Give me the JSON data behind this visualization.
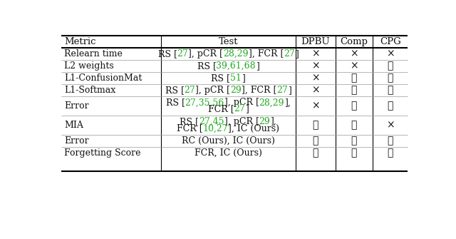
{
  "header": [
    "Metric",
    "Test",
    "DPBU",
    "Comp",
    "CPG"
  ],
  "rows": [
    {
      "metric": "Relearn time",
      "test_line1": [
        [
          "RS [",
          "k"
        ],
        [
          "27",
          "g"
        ],
        [
          "], pCR [",
          "k"
        ],
        [
          "28,29",
          "g"
        ],
        [
          "], FCR [",
          "k"
        ],
        [
          "27",
          "g"
        ],
        [
          "]",
          "k"
        ]
      ],
      "test_line2": [],
      "dpbu": "x",
      "comp": "x",
      "cpg": "x"
    },
    {
      "metric": "L2 weights",
      "test_line1": [
        [
          "RS [",
          "k"
        ],
        [
          "39,61,68",
          "g"
        ],
        [
          "]",
          "k"
        ]
      ],
      "test_line2": [],
      "dpbu": "x",
      "comp": "x",
      "cpg": "c"
    },
    {
      "metric": "L1-ConfusionMat",
      "test_line1": [
        [
          "RS [",
          "k"
        ],
        [
          "51",
          "g"
        ],
        [
          "]",
          "k"
        ]
      ],
      "test_line2": [],
      "dpbu": "x",
      "comp": "c",
      "cpg": "c"
    },
    {
      "metric": "L1-Softmax",
      "test_line1": [
        [
          "RS [",
          "k"
        ],
        [
          "27",
          "g"
        ],
        [
          "], pCR [",
          "k"
        ],
        [
          "29",
          "g"
        ],
        [
          "], FCR [",
          "k"
        ],
        [
          "27",
          "g"
        ],
        [
          "]",
          "k"
        ]
      ],
      "test_line2": [],
      "dpbu": "x",
      "comp": "c",
      "cpg": "c"
    },
    {
      "metric": "Error",
      "test_line1": [
        [
          "RS [",
          "k"
        ],
        [
          "27,35,56",
          "g"
        ],
        [
          "], pCR [",
          "k"
        ],
        [
          "28,29",
          "g"
        ],
        [
          "],",
          "k"
        ]
      ],
      "test_line2": [
        [
          "FCR [",
          "k"
        ],
        [
          "27",
          "g"
        ],
        [
          "]",
          "k"
        ]
      ],
      "dpbu": "x",
      "comp": "c",
      "cpg": "c"
    },
    {
      "metric": "MIA",
      "test_line1": [
        [
          "RS [",
          "k"
        ],
        [
          "27,45",
          "g"
        ],
        [
          "], pCR [",
          "k"
        ],
        [
          "29",
          "g"
        ],
        [
          "],",
          "k"
        ]
      ],
      "test_line2": [
        [
          "FCR [",
          "k"
        ],
        [
          "10,27",
          "g"
        ],
        [
          "], IC (Ours)",
          "k"
        ]
      ],
      "dpbu": "c",
      "comp": "c",
      "cpg": "x"
    },
    {
      "metric": "Error",
      "test_line1": [
        [
          "RC (Ours), IC (Ours)",
          "k"
        ]
      ],
      "test_line2": [],
      "dpbu": "c",
      "comp": "c",
      "cpg": "c"
    },
    {
      "metric": "Forgetting Score",
      "test_line1": [
        [
          "FCR, IC (Ours)",
          "k"
        ]
      ],
      "test_line2": [],
      "dpbu": "c",
      "comp": "c",
      "cpg": "c"
    }
  ],
  "green": "#22aa22",
  "black": "#111111",
  "bg": "#ffffff",
  "fs": 9.0,
  "hfs": 9.5
}
